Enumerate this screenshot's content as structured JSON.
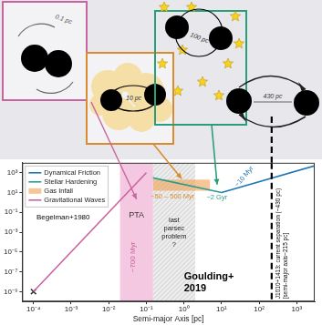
{
  "diagram": {
    "panels": [
      {
        "label": "0.1 pc",
        "color": "#c8649f"
      },
      {
        "label": "10 pc",
        "color": "#d98c2f"
      },
      {
        "label": "100 pc",
        "color": "#2a9d7a"
      },
      {
        "label": "430 pc",
        "color": "#222222"
      }
    ]
  },
  "chart_data": {
    "type": "line",
    "log": true,
    "grid": false,
    "legend": "upper left",
    "xlabel": "Semi-major Axis [pc]",
    "xlim": [
      5e-05,
      3000
    ],
    "ylim": [
      1e-10,
      10000
    ],
    "xticks": [
      {
        "value": 0.0001,
        "label": "10⁻⁴"
      },
      {
        "value": 0.001,
        "label": "10⁻³"
      },
      {
        "value": 0.01,
        "label": "10⁻²"
      },
      {
        "value": 0.1,
        "label": "10⁻¹"
      },
      {
        "value": 1,
        "label": "10⁰"
      },
      {
        "value": 10,
        "label": "10¹"
      },
      {
        "value": 100,
        "label": "10²"
      },
      {
        "value": 1000,
        "label": "10³"
      }
    ],
    "yticks": [
      {
        "value": 1000,
        "label": "10³"
      },
      {
        "value": 10,
        "label": "10¹"
      },
      {
        "value": 0.1,
        "label": "10⁻¹"
      },
      {
        "value": 0.001,
        "label": "10⁻³"
      },
      {
        "value": 1e-05,
        "label": "10⁻⁵"
      },
      {
        "value": 1e-07,
        "label": "10⁻⁷"
      },
      {
        "value": 1e-09,
        "label": "10⁻⁹"
      }
    ],
    "series": [
      {
        "name": "Dynamical Friction",
        "color": "#1f77b4",
        "x": [
          10,
          3000
        ],
        "values": [
          10,
          5000
        ]
      },
      {
        "name": "Stellar Hardening",
        "color": "#2a9d8f",
        "x": [
          0.15,
          10
        ],
        "values": [
          300,
          10
        ]
      },
      {
        "name": "Gas Infall",
        "type": "area",
        "color": "#f0a050",
        "x": [
          0.15,
          5
        ],
        "values": [
          200,
          200
        ],
        "low": [
          15,
          15
        ]
      },
      {
        "name": "Gravitational Waves",
        "color": "#c8649f",
        "x": [
          0.0001,
          0.1
        ],
        "values": [
          1e-09,
          1000
        ]
      },
      {
        "type": "scatter",
        "marker": "x",
        "color": "#333333",
        "x": [
          0.0001
        ],
        "values": [
          1e-09
        ]
      }
    ],
    "regions": [
      {
        "label": "PTA",
        "type": "shaded",
        "color": "#f5c8e2",
        "x": [
          0.02,
          0.15
        ]
      },
      {
        "label": "last parsec problem ?",
        "type": "hatched",
        "color": "#9a9a9a",
        "x": [
          0.15,
          2
        ]
      }
    ],
    "vlines": [
      {
        "x": 215,
        "label": "J1010+1413: current separation (~430 pc)",
        "sublabel": "[semi-major axis~215 pc]",
        "line_style": "dashed",
        "color": "#000000"
      }
    ],
    "annotations": [
      {
        "text": "Begelman+1980",
        "color": "#000000"
      },
      {
        "text": "~700 Myr",
        "color": "#c8649f"
      },
      {
        "text": "~50 – 500 Myr",
        "color": "#d98c2f"
      },
      {
        "text": "~2 Gyr",
        "color": "#2a9d8f"
      },
      {
        "text": "~10 Myr",
        "color": "#1f77b4"
      },
      {
        "text": "Goulding+ 2019",
        "color": "#000000"
      }
    ]
  }
}
